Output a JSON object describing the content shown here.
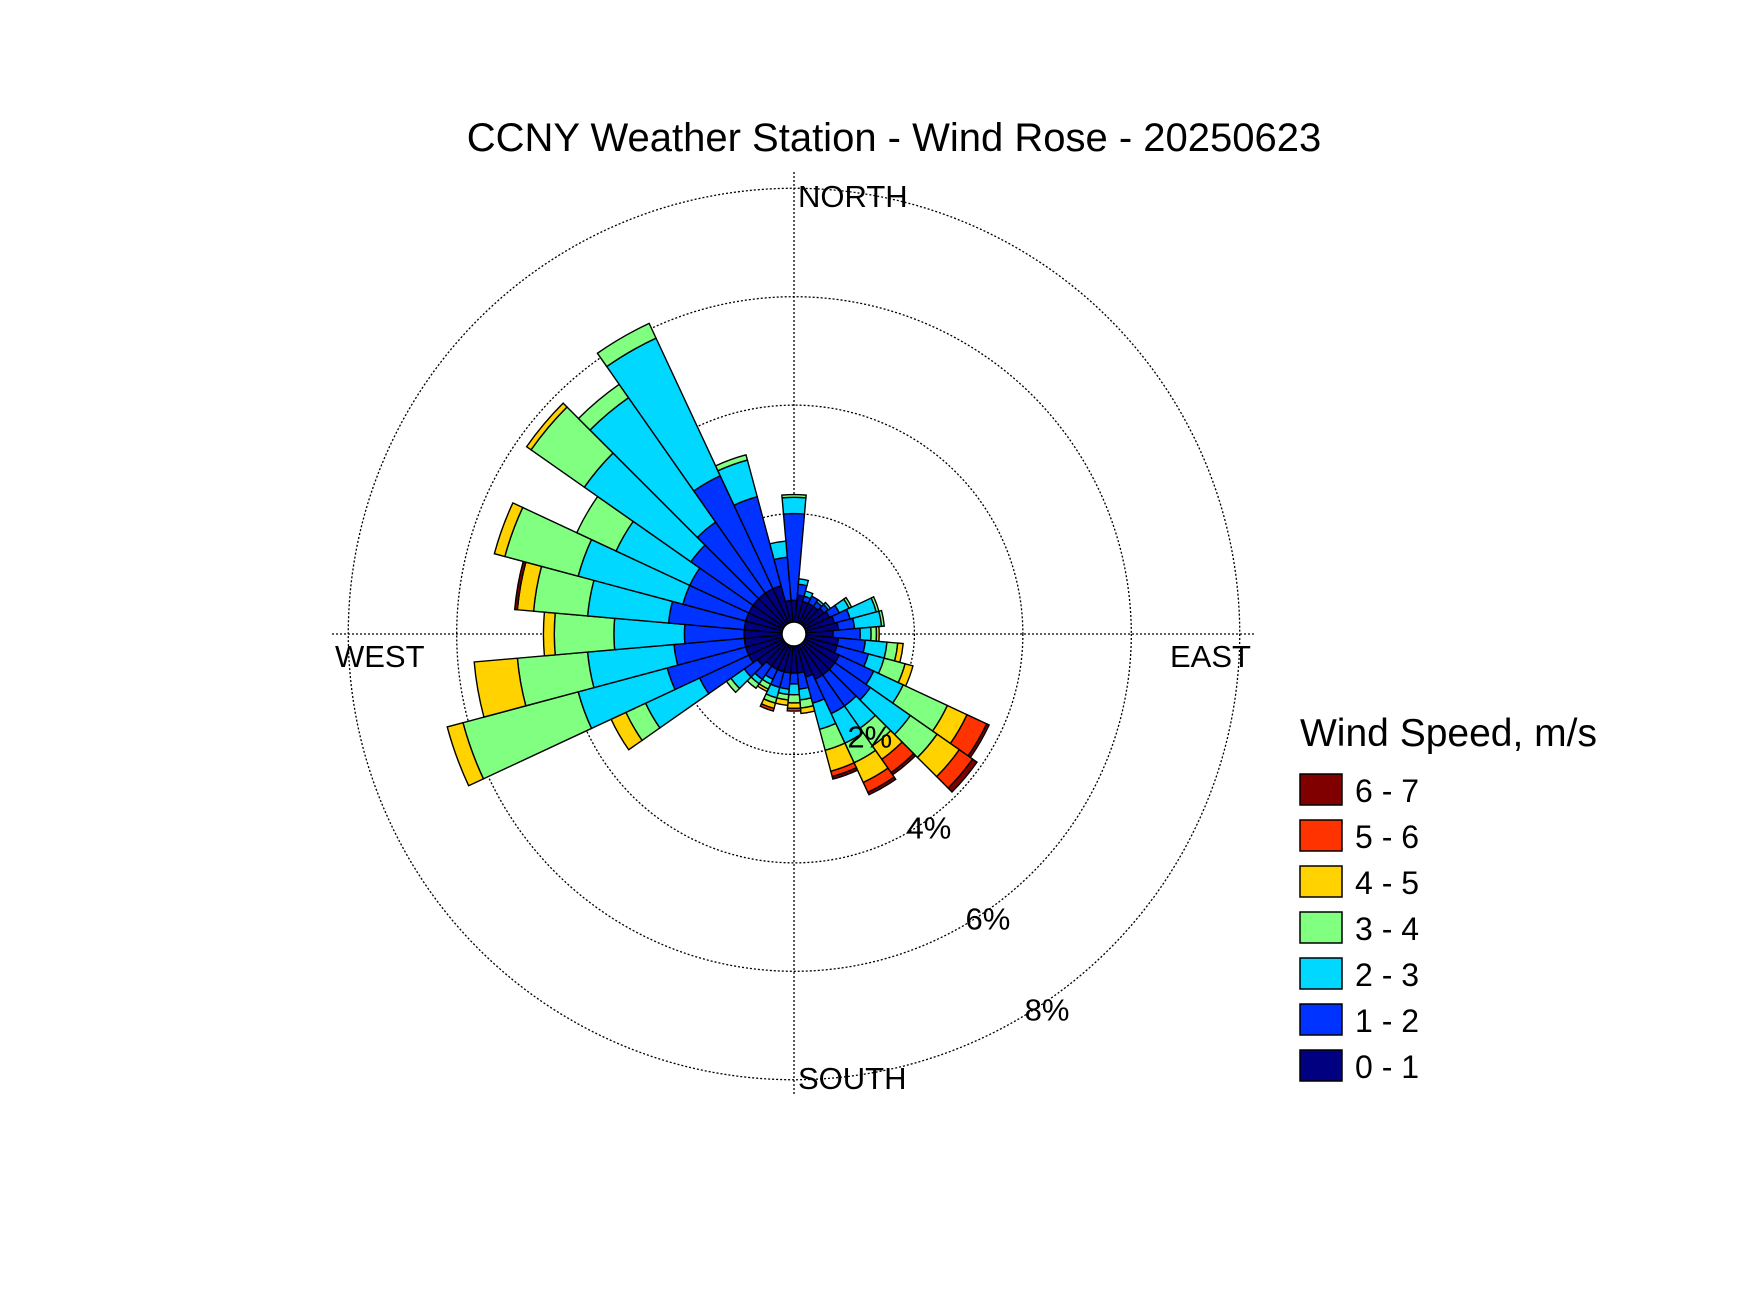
{
  "chart_data": {
    "type": "windrose",
    "title": "CCNY Weather Station - Wind Rose - 20250623",
    "direction_labels": {
      "north": "NORTH",
      "east": "EAST",
      "south": "SOUTH",
      "west": "WEST"
    },
    "radial_ticks": [
      2,
      4,
      6,
      8
    ],
    "radial_tick_labels": [
      "2%",
      "4%",
      "6%",
      "8%"
    ],
    "radial_max": 8.3,
    "radial_unit": "%",
    "legend": {
      "title": "Wind Speed, m/s",
      "bins": [
        "6 - 7",
        "5 - 6",
        "4 - 5",
        "3 - 4",
        "2 - 3",
        "1 - 2",
        "0 - 1"
      ],
      "colors": [
        "#800000",
        "#FF3300",
        "#FFD200",
        "#80FF80",
        "#00D8FF",
        "#0033FF",
        "#000080"
      ]
    },
    "speed_bins": [
      "0 - 1",
      "1 - 2",
      "2 - 3",
      "3 - 4",
      "4 - 5",
      "5 - 6",
      "6 - 7"
    ],
    "bin_colors": [
      "#000080",
      "#0033FF",
      "#00D8FF",
      "#80FF80",
      "#FFD200",
      "#FF3300",
      "#800000"
    ],
    "sector_width_deg": 10,
    "sectors": [
      {
        "dir": 0,
        "values": [
          0.4,
          1.6,
          0.3,
          0.05,
          0,
          0,
          0
        ]
      },
      {
        "dir": 10,
        "values": [
          0.5,
          0.2,
          0.1,
          0,
          0,
          0,
          0
        ]
      },
      {
        "dir": 20,
        "values": [
          0.4,
          0.1,
          0.1,
          0,
          0,
          0,
          0
        ]
      },
      {
        "dir": 30,
        "values": [
          0.4,
          0.15,
          0,
          0,
          0,
          0,
          0
        ]
      },
      {
        "dir": 40,
        "values": [
          0.4,
          0.1,
          0.05,
          0,
          0,
          0,
          0
        ]
      },
      {
        "dir": 50,
        "values": [
          0.45,
          0.1,
          0.05,
          0,
          0,
          0,
          0
        ]
      },
      {
        "dir": 60,
        "values": [
          0.5,
          0.2,
          0.2,
          0.05,
          0,
          0,
          0
        ]
      },
      {
        "dir": 70,
        "values": [
          0.55,
          0.3,
          0.5,
          0.05,
          0,
          0,
          0
        ]
      },
      {
        "dir": 80,
        "values": [
          0.6,
          0.3,
          0.5,
          0.05,
          0,
          0,
          0
        ]
      },
      {
        "dir": 90,
        "values": [
          0.5,
          0.5,
          0.2,
          0.1,
          0.05,
          0,
          0
        ]
      },
      {
        "dir": 100,
        "values": [
          0.6,
          0.5,
          0.4,
          0.2,
          0.1,
          0,
          0
        ]
      },
      {
        "dir": 110,
        "values": [
          0.6,
          0.6,
          0.3,
          0.4,
          0.15,
          0,
          0
        ]
      },
      {
        "dir": 120,
        "values": [
          0.7,
          0.7,
          0.6,
          0.9,
          0.4,
          0.4,
          0.05
        ]
      },
      {
        "dir": 130,
        "values": [
          0.7,
          0.8,
          0.9,
          0.6,
          0.5,
          0.3,
          0.1
        ]
      },
      {
        "dir": 140,
        "values": [
          0.7,
          0.7,
          0.5,
          0.4,
          0.3,
          0.3,
          0.05
        ]
      },
      {
        "dir": 150,
        "values": [
          0.7,
          0.7,
          0.6,
          0.4,
          0.4,
          0.2,
          0.05
        ]
      },
      {
        "dir": 160,
        "values": [
          0.6,
          0.5,
          0.5,
          0.4,
          0.4,
          0.1,
          0.05
        ]
      },
      {
        "dir": 170,
        "values": [
          0.5,
          0.3,
          0.2,
          0.15,
          0.1,
          0,
          0
        ]
      },
      {
        "dir": 180,
        "values": [
          0.5,
          0.2,
          0.2,
          0.15,
          0.1,
          0.05,
          0
        ]
      },
      {
        "dir": 190,
        "values": [
          0.5,
          0.3,
          0.1,
          0.1,
          0.1,
          0,
          0
        ]
      },
      {
        "dir": 200,
        "values": [
          0.5,
          0.3,
          0.2,
          0.1,
          0.1,
          0.05,
          0
        ]
      },
      {
        "dir": 210,
        "values": [
          0.5,
          0.2,
          0.1,
          0.1,
          0.05,
          0,
          0
        ]
      },
      {
        "dir": 220,
        "values": [
          0.5,
          0.3,
          0.1,
          0.1,
          0,
          0,
          0
        ]
      },
      {
        "dir": 230,
        "values": [
          0.6,
          0.3,
          0.3,
          0.1,
          0,
          0,
          0
        ]
      },
      {
        "dir": 240,
        "values": [
          0.7,
          1.0,
          1.1,
          0.4,
          0.3,
          0,
          0
        ]
      },
      {
        "dir": 250,
        "values": [
          0.7,
          1.5,
          1.7,
          2.2,
          0.3,
          0,
          0
        ]
      },
      {
        "dir": 260,
        "values": [
          0.7,
          1.3,
          1.6,
          1.3,
          0.8,
          0,
          0
        ]
      },
      {
        "dir": 270,
        "values": [
          0.7,
          1.1,
          1.3,
          1.1,
          0.2,
          0,
          0
        ]
      },
      {
        "dir": 280,
        "values": [
          0.7,
          1.4,
          1.5,
          1.0,
          0.3,
          0,
          0.05
        ]
      },
      {
        "dir": 290,
        "values": [
          0.7,
          1.2,
          2.0,
          1.4,
          0.2,
          0,
          0
        ]
      },
      {
        "dir": 300,
        "values": [
          0.7,
          1.2,
          1.5,
          0.8,
          0,
          0,
          0
        ]
      },
      {
        "dir": 310,
        "values": [
          0.7,
          1.4,
          2.4,
          1.2,
          0.1,
          0,
          0
        ]
      },
      {
        "dir": 320,
        "values": [
          0.7,
          1.6,
          2.8,
          0.3,
          0,
          0,
          0
        ]
      },
      {
        "dir": 330,
        "values": [
          0.7,
          2.3,
          2.8,
          0.3,
          0,
          0,
          0
        ]
      },
      {
        "dir": 340,
        "values": [
          0.7,
          1.7,
          0.7,
          0.1,
          0,
          0,
          0
        ]
      },
      {
        "dir": 350,
        "values": [
          0.4,
          0.8,
          0.3,
          0,
          0,
          0,
          0
        ]
      }
    ]
  }
}
